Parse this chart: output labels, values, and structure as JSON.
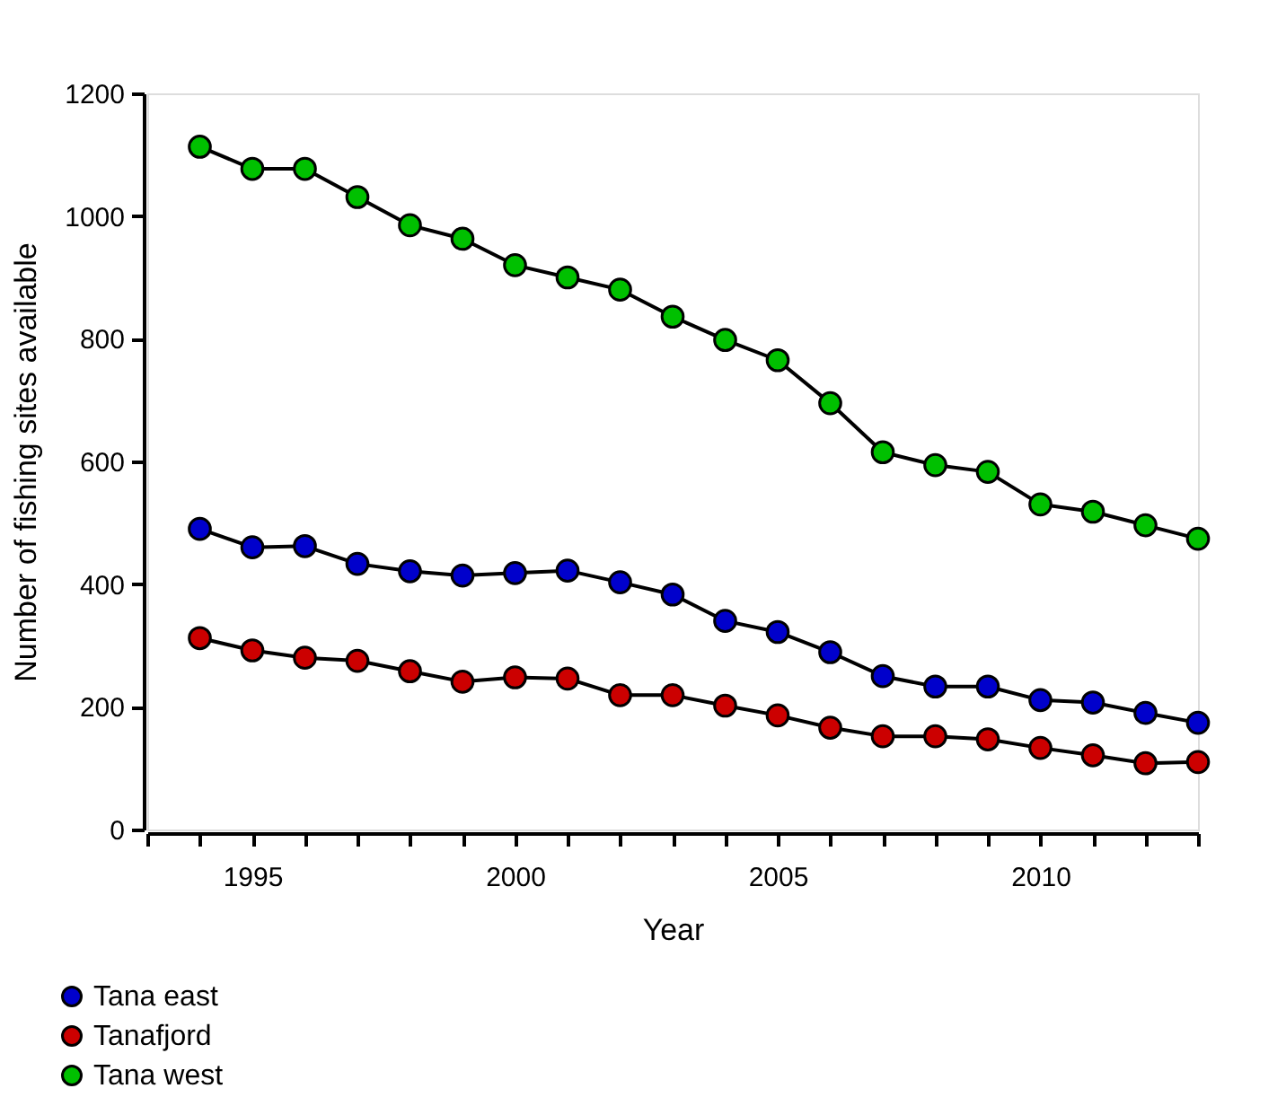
{
  "chart_data": {
    "type": "line",
    "xlabel": "Year",
    "ylabel": "Number of fishing sites available",
    "x": [
      1994,
      1995,
      1996,
      1997,
      1998,
      1999,
      2000,
      2001,
      2002,
      2003,
      2004,
      2005,
      2006,
      2007,
      2008,
      2009,
      2010,
      2011,
      2012,
      2013
    ],
    "series": [
      {
        "name": "Tana east",
        "color": "#0000cc",
        "values": [
          490,
          460,
          462,
          433,
          421,
          414,
          418,
          422,
          403,
          383,
          340,
          322,
          289,
          250,
          233,
          233,
          211,
          207,
          190,
          174
        ]
      },
      {
        "name": "Tanafjord",
        "color": "#cc0000",
        "values": [
          312,
          292,
          280,
          275,
          258,
          241,
          248,
          246,
          219,
          219,
          202,
          186,
          166,
          152,
          152,
          147,
          133,
          121,
          108,
          110
        ]
      },
      {
        "name": "Tana west",
        "color": "#00c000",
        "values": [
          1113,
          1077,
          1077,
          1031,
          985,
          963,
          920,
          900,
          880,
          836,
          798,
          765,
          695,
          615,
          594,
          583,
          530,
          518,
          496,
          474
        ]
      }
    ],
    "xlim": [
      1993,
      2013
    ],
    "xticks": [
      {
        "value": 1993,
        "label": null
      },
      {
        "value": 1994,
        "label": null
      },
      1995,
      {
        "value": 1996,
        "label": null
      },
      {
        "value": 1997,
        "label": null
      },
      {
        "value": 1998,
        "label": null
      },
      {
        "value": 1999,
        "label": null
      },
      2000,
      {
        "value": 2001,
        "label": null
      },
      {
        "value": 2002,
        "label": null
      },
      {
        "value": 2003,
        "label": null
      },
      {
        "value": 2004,
        "label": null
      },
      2005,
      {
        "value": 2006,
        "label": null
      },
      {
        "value": 2007,
        "label": null
      },
      {
        "value": 2008,
        "label": null
      },
      {
        "value": 2009,
        "label": null
      },
      2010,
      {
        "value": 2011,
        "label": null
      },
      {
        "value": 2012,
        "label": null
      },
      {
        "value": 2013,
        "label": null
      }
    ],
    "ylim": [
      0,
      1200
    ],
    "yticks": [
      0,
      200,
      400,
      600,
      800,
      1000,
      1200
    ],
    "grid": false,
    "legend": "bottom left",
    "marker": "circle",
    "line_style": "solid"
  }
}
